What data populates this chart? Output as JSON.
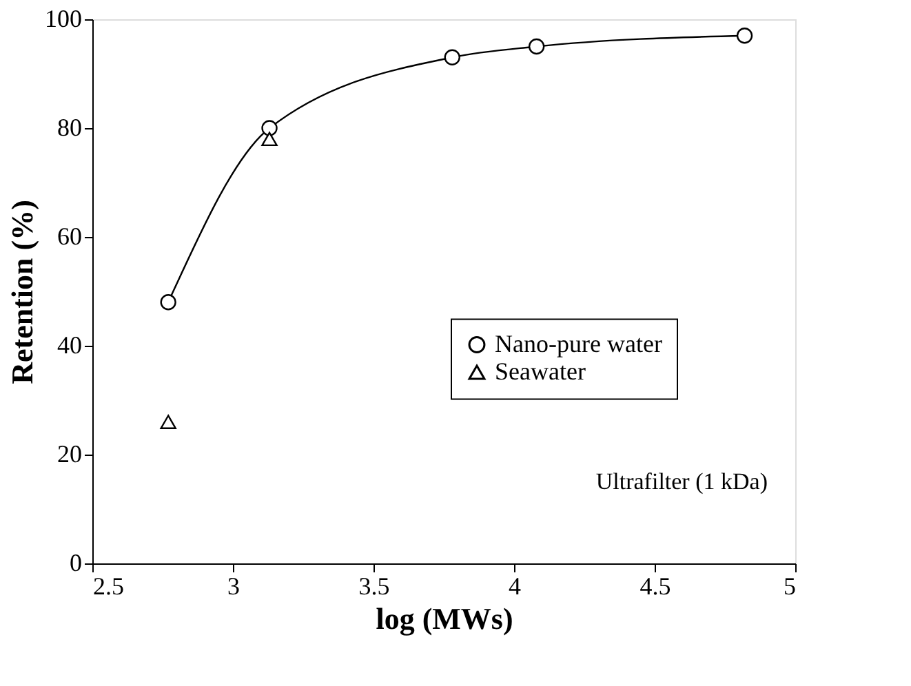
{
  "chart_data": {
    "type": "line",
    "xlabel": "log  (MWs)",
    "ylabel": "Retention  (%)",
    "series": [
      {
        "name": "Nano-pure water",
        "marker": "circle",
        "line_style": "solid",
        "color": "#000000",
        "x": [
          2.77,
          3.13,
          3.78,
          4.08,
          4.82
        ],
        "values": [
          48,
          80,
          93,
          95,
          97
        ]
      },
      {
        "name": "Seawater",
        "type": "scatter",
        "marker": "triangle",
        "color": "#000000",
        "x": [
          2.77,
          3.13
        ],
        "values": [
          26,
          78
        ]
      }
    ],
    "xlim": [
      2.5,
      5
    ],
    "xticks": [
      2.5,
      3,
      3.5,
      4,
      4.5,
      5
    ],
    "ylim": [
      0,
      100
    ],
    "yticks": [
      0,
      20,
      40,
      60,
      80,
      100
    ],
    "grid": false,
    "legend": "right",
    "annotations": [
      "Ultrafilter (1 kDa)"
    ]
  }
}
